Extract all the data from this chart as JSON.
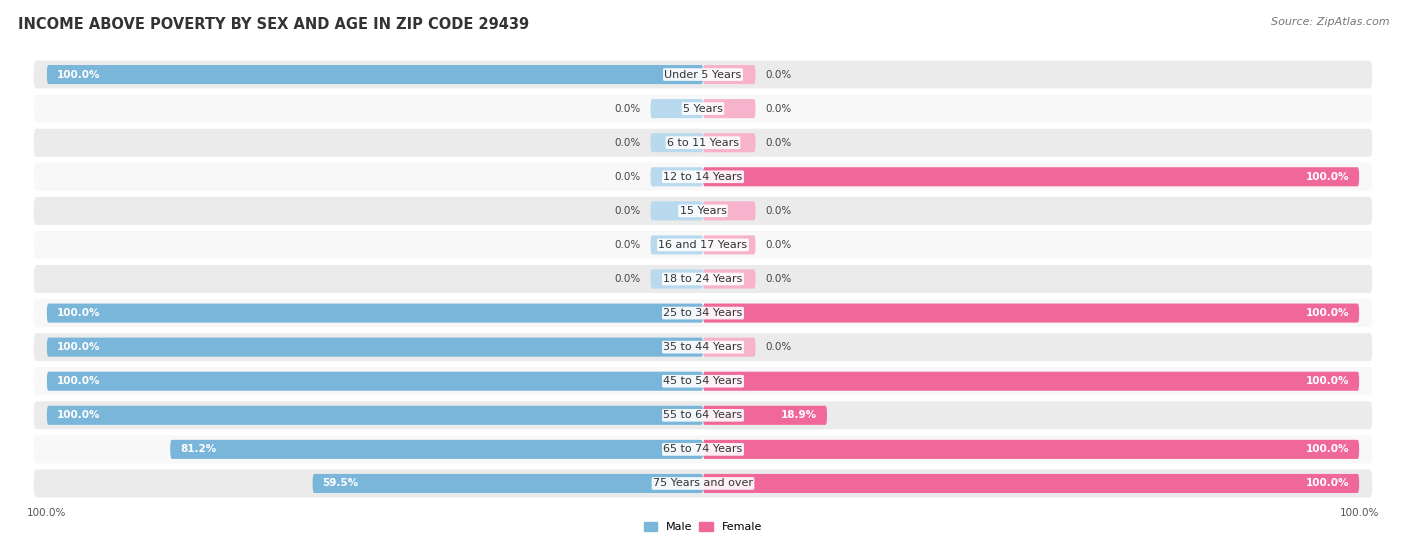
{
  "title": "INCOME ABOVE POVERTY BY SEX AND AGE IN ZIP CODE 29439",
  "source": "Source: ZipAtlas.com",
  "categories": [
    "Under 5 Years",
    "5 Years",
    "6 to 11 Years",
    "12 to 14 Years",
    "15 Years",
    "16 and 17 Years",
    "18 to 24 Years",
    "25 to 34 Years",
    "35 to 44 Years",
    "45 to 54 Years",
    "55 to 64 Years",
    "65 to 74 Years",
    "75 Years and over"
  ],
  "male_values": [
    100.0,
    0.0,
    0.0,
    0.0,
    0.0,
    0.0,
    0.0,
    100.0,
    100.0,
    100.0,
    100.0,
    81.2,
    59.5
  ],
  "female_values": [
    0.0,
    0.0,
    0.0,
    100.0,
    0.0,
    0.0,
    0.0,
    100.0,
    0.0,
    100.0,
    18.9,
    100.0,
    100.0
  ],
  "male_color": "#7ab6d9",
  "male_color_light": "#b8d9ee",
  "female_color": "#f0679a",
  "female_color_light": "#f7b3cc",
  "bg_row_even": "#ebebeb",
  "bg_row_odd": "#f8f8f8",
  "title_fontsize": 10.5,
  "cat_fontsize": 8,
  "val_fontsize": 7.5,
  "source_fontsize": 8,
  "legend_fontsize": 8,
  "axis_label_fontsize": 7.5
}
